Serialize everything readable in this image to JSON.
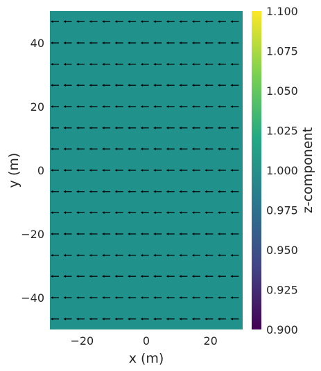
{
  "chart_data": {
    "type": "heatmap",
    "title": "",
    "xlabel": "x (m)",
    "ylabel": "y (m)",
    "xlim": [
      -30,
      30
    ],
    "ylim": [
      -50,
      50
    ],
    "x_ticks": [
      -20,
      0,
      20
    ],
    "x_tick_labels": [
      "−20",
      "0",
      "20"
    ],
    "y_ticks": [
      -40,
      -20,
      0,
      20,
      40
    ],
    "y_tick_labels": [
      "−40",
      "−20",
      "0",
      "20",
      "40"
    ],
    "heatmap_value": 1.0,
    "heatmap_color": "#21918c",
    "colorbar": {
      "label": "z-component",
      "range": [
        0.9,
        1.1
      ],
      "ticks": [
        0.9,
        0.925,
        0.95,
        0.975,
        1.0,
        1.025,
        1.05,
        1.075,
        1.1
      ],
      "tick_labels": [
        "0.900",
        "0.925",
        "0.950",
        "0.975",
        "1.000",
        "1.025",
        "1.050",
        "1.075",
        "1.100"
      ],
      "colormap": "viridis",
      "colormap_stops": [
        "#440154",
        "#414487",
        "#2a788e",
        "#22a884",
        "#7ad151",
        "#fde725"
      ]
    },
    "vector_field": {
      "direction": "negative-x",
      "x_positions": [
        -28.5,
        -24.5,
        -20.5,
        -16.5,
        -12.5,
        -8.5,
        -4.5,
        -0.5,
        3.5,
        7.5,
        11.5,
        15.5,
        19.5,
        23.5,
        27.5
      ],
      "y_positions": [
        46.7,
        40.0,
        33.3,
        26.7,
        20.0,
        13.3,
        6.7,
        0.0,
        -6.7,
        -13.3,
        -20.0,
        -26.7,
        -33.3,
        -40.0,
        -46.7
      ],
      "arrow_length": 2.6,
      "arrow_color": "#000000"
    },
    "grid": false
  }
}
